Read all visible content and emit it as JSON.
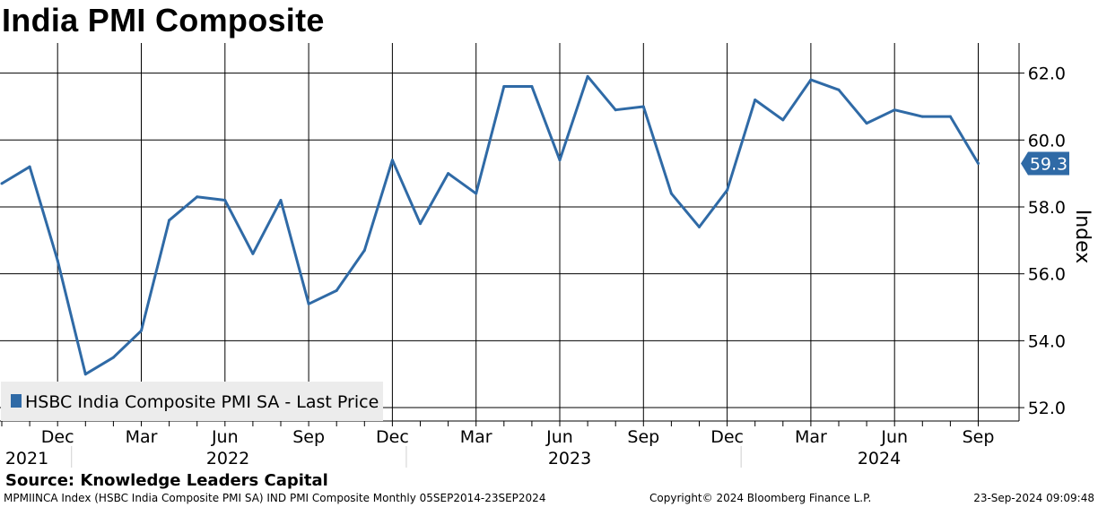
{
  "title": "India PMI Composite",
  "chart_data": {
    "type": "line",
    "title": "India PMI Composite",
    "ylabel": "Index",
    "ylim": [
      51.6,
      62.9
    ],
    "yticks": [
      52,
      54,
      56,
      58,
      60,
      62
    ],
    "ytick_labels": [
      "52.0",
      "54.0",
      "56.0",
      "58.0",
      "60.0",
      "62.0"
    ],
    "x": [
      "2021-10",
      "2021-11",
      "2021-12",
      "2022-01",
      "2022-02",
      "2022-03",
      "2022-04",
      "2022-05",
      "2022-06",
      "2022-07",
      "2022-08",
      "2022-09",
      "2022-10",
      "2022-11",
      "2022-12",
      "2023-01",
      "2023-02",
      "2023-03",
      "2023-04",
      "2023-05",
      "2023-06",
      "2023-07",
      "2023-08",
      "2023-09",
      "2023-10",
      "2023-11",
      "2023-12",
      "2024-01",
      "2024-02",
      "2024-03",
      "2024-04",
      "2024-05",
      "2024-06",
      "2024-07",
      "2024-08",
      "2024-09"
    ],
    "x_month_labels": [
      {
        "month": "2021-12",
        "label": "Dec"
      },
      {
        "month": "2022-03",
        "label": "Mar"
      },
      {
        "month": "2022-06",
        "label": "Jun"
      },
      {
        "month": "2022-09",
        "label": "Sep"
      },
      {
        "month": "2022-12",
        "label": "Dec"
      },
      {
        "month": "2023-03",
        "label": "Mar"
      },
      {
        "month": "2023-06",
        "label": "Jun"
      },
      {
        "month": "2023-09",
        "label": "Sep"
      },
      {
        "month": "2023-12",
        "label": "Dec"
      },
      {
        "month": "2024-03",
        "label": "Mar"
      },
      {
        "month": "2024-06",
        "label": "Jun"
      },
      {
        "month": "2024-09",
        "label": "Sep"
      }
    ],
    "x_year_labels": [
      "2021",
      "2022",
      "2023",
      "2024"
    ],
    "series": [
      {
        "name": "HSBC India Composite PMI SA - Last Price",
        "color": "#2f6aa6",
        "values": [
          58.7,
          59.2,
          56.4,
          53.0,
          53.5,
          54.3,
          57.6,
          58.3,
          58.2,
          56.6,
          58.2,
          55.1,
          55.5,
          56.7,
          59.4,
          57.5,
          59.0,
          58.4,
          61.6,
          61.6,
          59.4,
          61.9,
          60.9,
          61.0,
          58.4,
          57.4,
          58.5,
          61.2,
          60.6,
          61.8,
          61.5,
          60.5,
          60.9,
          60.7,
          60.7,
          59.3
        ]
      }
    ],
    "last_value_label": "59.3",
    "grid": true,
    "legend": "bottom-left"
  },
  "source": "Source: Knowledge Leaders Capital",
  "footer": {
    "left": "MPMIINCA Index (HSBC India Composite PMI SA) IND PMI Composite  Monthly 05SEP2014-23SEP2024",
    "middle": "Copyright© 2024 Bloomberg Finance L.P.",
    "right": "23-Sep-2024 09:09:48"
  }
}
